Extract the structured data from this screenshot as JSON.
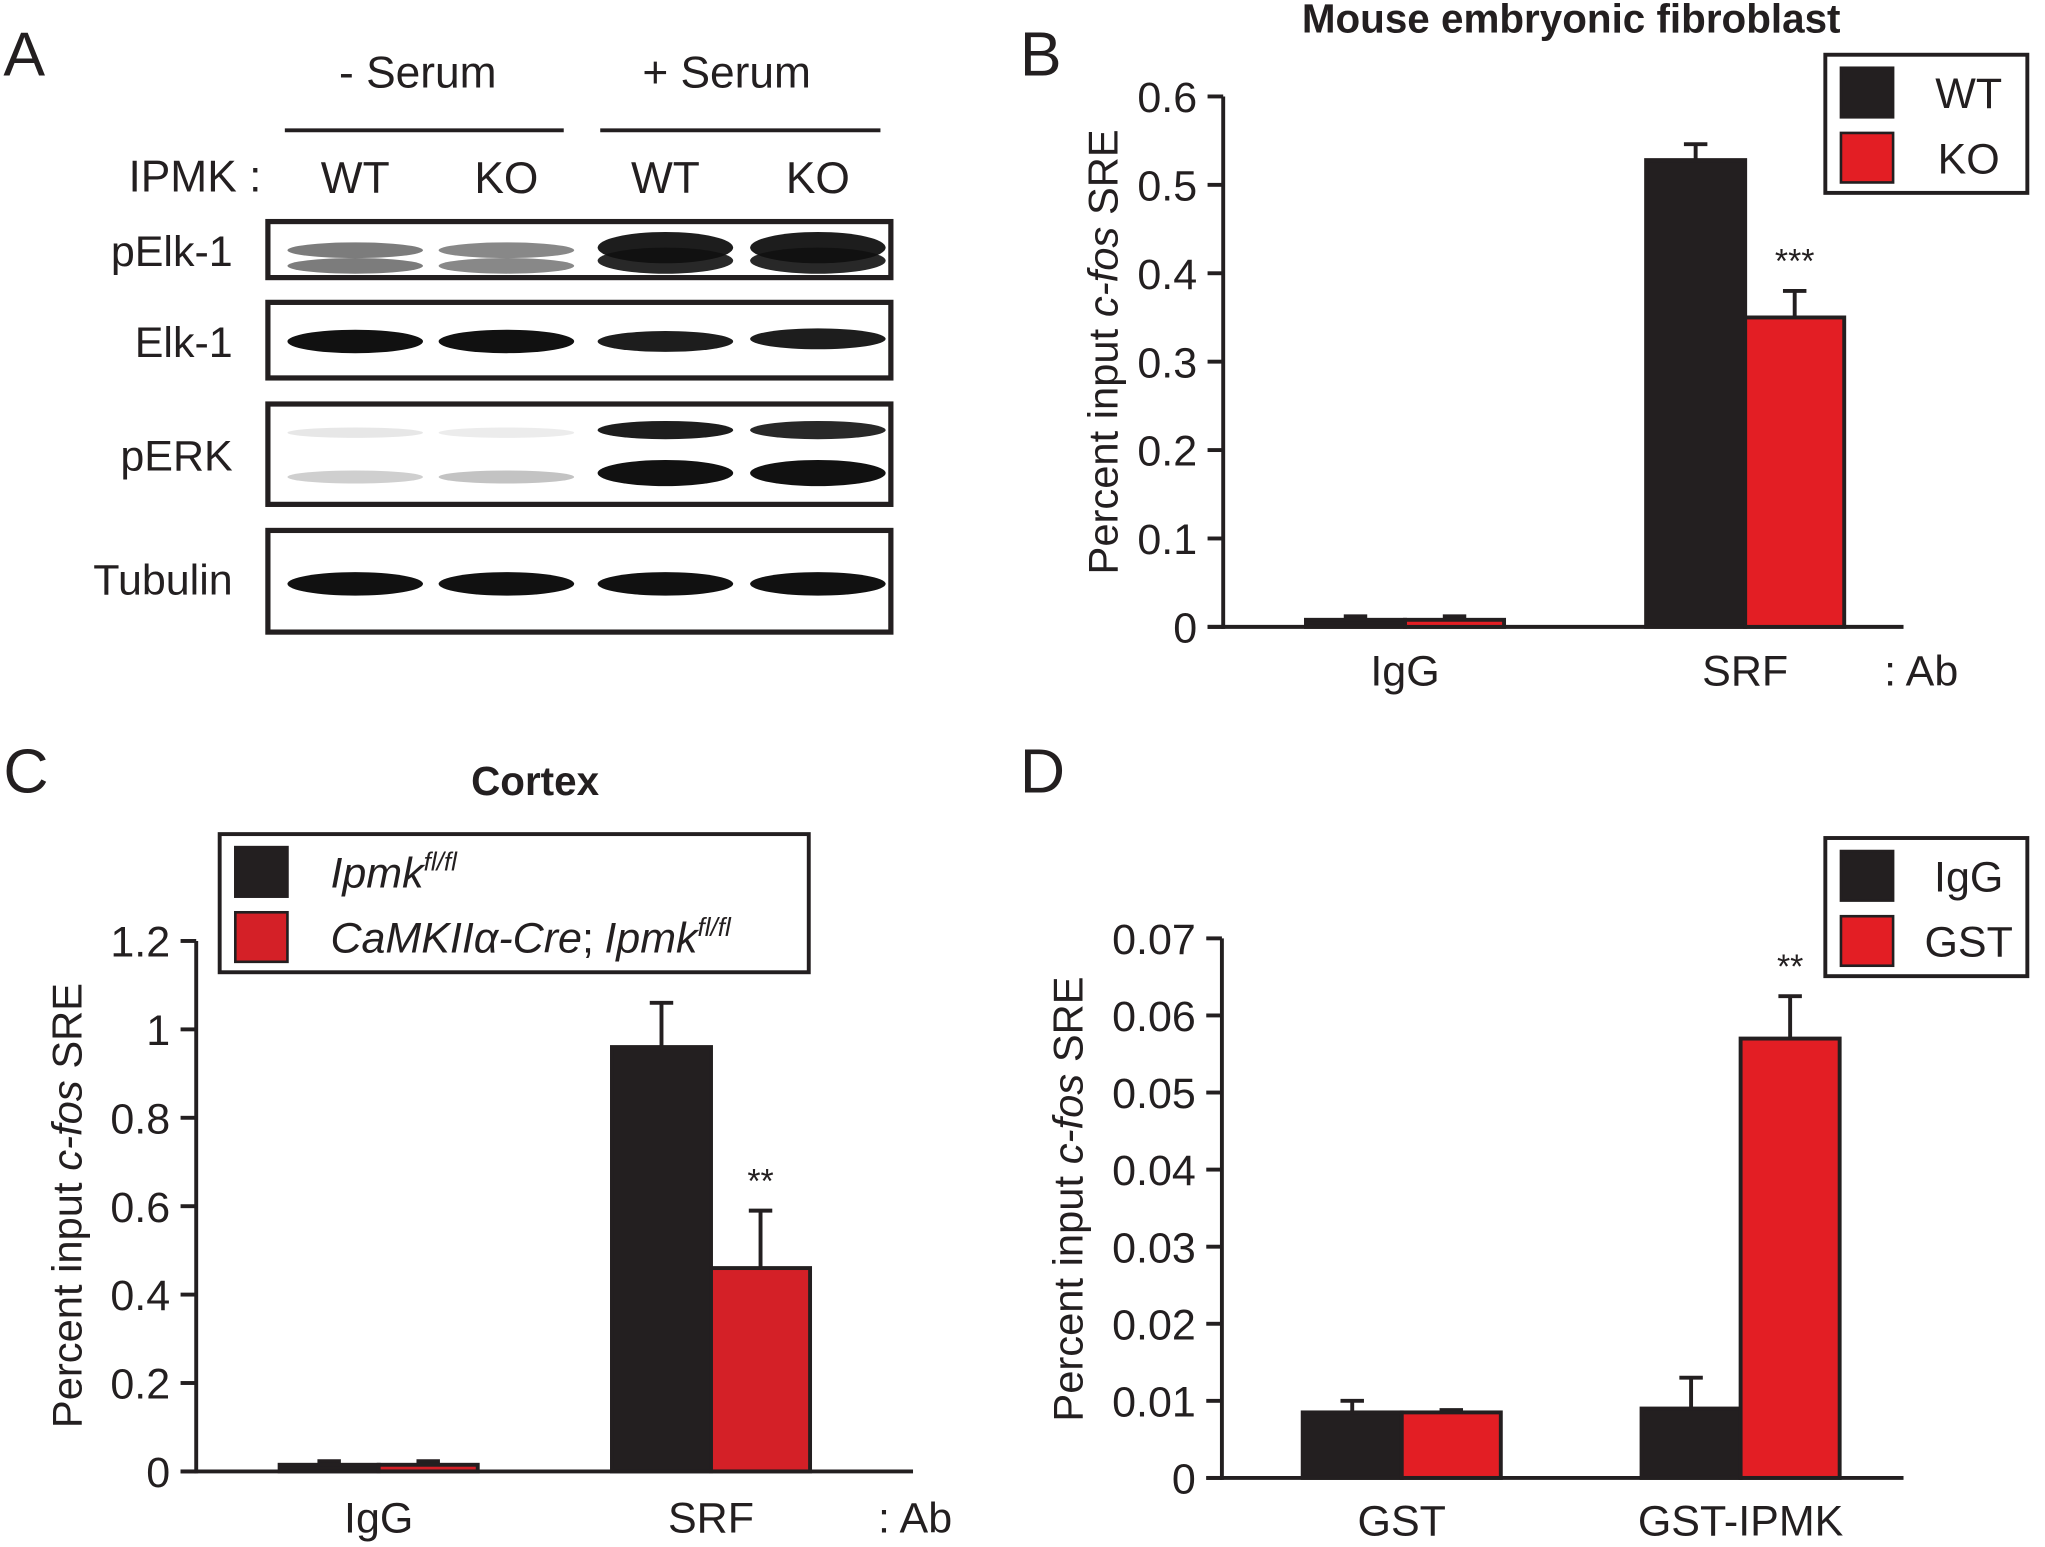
{
  "blot": {
    "panel": "A",
    "groups": [
      "- Serum",
      "+ Serum"
    ],
    "lane_label": "IPMK :",
    "lanes": [
      "WT",
      "KO",
      "WT",
      "KO"
    ],
    "rows": [
      "pElk-1",
      "Elk-1",
      "pERK",
      "Tubulin"
    ]
  },
  "chart_data": [
    {
      "type": "bar",
      "panel": "B",
      "title": "Mouse embryonic fibroblast",
      "ylabel_parts": [
        {
          "text": "Percent input",
          "italic": false
        },
        {
          "text": "c-fos",
          "italic": true
        },
        {
          "text": "SRE",
          "italic": false
        }
      ],
      "categories": [
        "IgG",
        "SRF"
      ],
      "axis_note": ": Ab",
      "series": [
        {
          "name_parts": [
            {
              "text": "WT"
            }
          ],
          "color": "#231f20",
          "values": [
            0.008,
            0.528
          ],
          "errors": [
            0.004,
            0.018
          ]
        },
        {
          "name_parts": [
            {
              "text": "KO"
            }
          ],
          "color": "#e31e24",
          "values": [
            0.008,
            0.35
          ],
          "errors": [
            0.004,
            0.03
          ]
        }
      ],
      "annotations": [
        {
          "text": "***",
          "category": 1,
          "series": 1
        }
      ],
      "ylim": [
        0,
        0.6
      ],
      "yticks": [
        0,
        0.1,
        0.2,
        0.3,
        0.4,
        0.5,
        0.6
      ],
      "legend": "top right"
    },
    {
      "type": "bar",
      "panel": "C",
      "title": "Cortex",
      "ylabel_parts": [
        {
          "text": "Percent input",
          "italic": false
        },
        {
          "text": "c-fos",
          "italic": true
        },
        {
          "text": "SRE",
          "italic": false
        }
      ],
      "categories": [
        "IgG",
        "SRF"
      ],
      "axis_note": ": Ab",
      "series": [
        {
          "name_parts": [
            {
              "text": "Ipmk",
              "italic": true
            },
            {
              "text": "fl/fl",
              "italic": true,
              "sup": true
            }
          ],
          "color": "#231f20",
          "values": [
            0.015,
            0.96
          ],
          "errors": [
            0.008,
            0.1
          ]
        },
        {
          "name_parts": [
            {
              "text": "CaMKIIα-Cre",
              "italic": true
            },
            {
              "text": ";",
              "italic": false
            },
            {
              "text": "Ipmk",
              "italic": true
            },
            {
              "text": "fl/fl",
              "italic": true,
              "sup": true
            }
          ],
          "color": "#d42027",
          "values": [
            0.015,
            0.46
          ],
          "errors": [
            0.008,
            0.13
          ]
        }
      ],
      "annotations": [
        {
          "text": "**",
          "category": 1,
          "series": 1
        }
      ],
      "ylim": [
        0,
        1.2
      ],
      "yticks": [
        0,
        0.2,
        0.4,
        0.6,
        0.8,
        1,
        1.2
      ],
      "legend": "top left"
    },
    {
      "type": "bar",
      "panel": "D",
      "ylabel_parts": [
        {
          "text": "Percent input",
          "italic": false
        },
        {
          "text": "c-fos",
          "italic": true
        },
        {
          "text": "SRE",
          "italic": false
        }
      ],
      "categories": [
        "GST",
        "GST-IPMK"
      ],
      "series": [
        {
          "name_parts": [
            {
              "text": "IgG"
            }
          ],
          "color": "#231f20",
          "values": [
            0.0085,
            0.009
          ],
          "errors": [
            0.0015,
            0.004
          ]
        },
        {
          "name_parts": [
            {
              "text": "GST"
            }
          ],
          "color": "#e31e24",
          "values": [
            0.0085,
            0.057
          ],
          "errors": [
            0.0003,
            0.0055
          ]
        }
      ],
      "annotations": [
        {
          "text": "**",
          "category": 1,
          "series": 1
        }
      ],
      "ylim": [
        0,
        0.07
      ],
      "yticks": [
        0,
        0.01,
        0.02,
        0.03,
        0.04,
        0.05,
        0.06,
        0.07
      ],
      "legend": "top right"
    }
  ]
}
